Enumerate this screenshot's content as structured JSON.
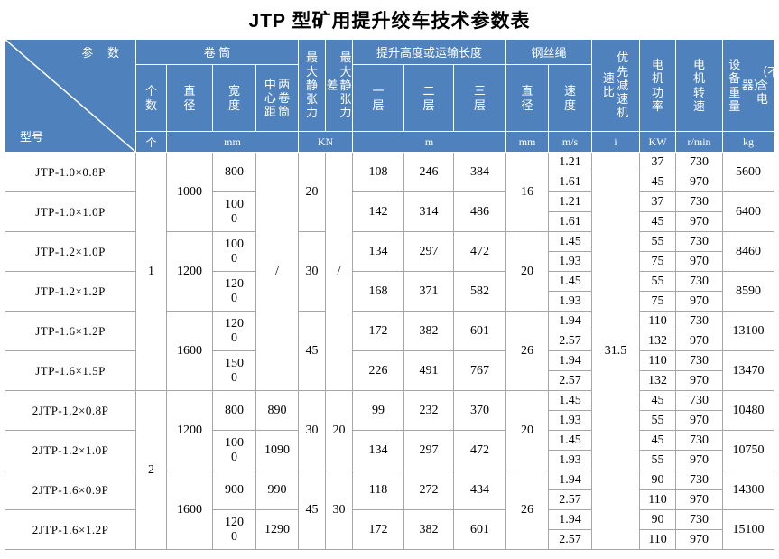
{
  "title": "JTP 型矿用提升绞车技术参数表",
  "colors": {
    "header_bg": "#4f81bd",
    "header_text": "#ffffff",
    "body_border": "#a6a6a6"
  },
  "header": {
    "corner": {
      "param": "参  数",
      "model": "型号"
    },
    "groups": {
      "drum": "卷 筒",
      "lift_height": "提升高度或运输长度",
      "wire_rope": "钢丝绳"
    },
    "labels": {
      "drum_count": "个数",
      "drum_diameter": "直径",
      "drum_width": "宽度",
      "center_distance_cols": [
        "中心距",
        "两卷筒"
      ],
      "max_static_tension": "最大静张力",
      "tension_diff_cols": [
        "差",
        "最大静张力"
      ],
      "layer1": "一层",
      "layer2": "二层",
      "layer3": "三层",
      "rope_diameter": "直径",
      "rope_speed": "速度",
      "reducer_ratio_cols": [
        "速比",
        "优先减速机"
      ],
      "motor_power": "电机功率",
      "motor_speed": "电机转速",
      "weight_cols": [
        "设备重量",
        "器）",
        "（不含电"
      ]
    },
    "units": {
      "count": "个",
      "drum_mm": "mm",
      "kn": "KN",
      "m": "m",
      "rope_mm": "mm",
      "ms": "m/s",
      "i": "i",
      "kw": "KW",
      "rmin": "r/min",
      "kg": "kg"
    }
  },
  "body": {
    "models": [
      {
        "model": "JTP-1.0×0.8P",
        "width": "800",
        "layers": [
          "108",
          "246",
          "384"
        ],
        "speeds": [
          "1.21",
          "1.61"
        ],
        "powers": [
          "37",
          "45"
        ],
        "rpms": [
          "730",
          "970"
        ],
        "weight": "5600"
      },
      {
        "model": "JTP-1.0×1.0P",
        "width": "1000",
        "layers": [
          "142",
          "314",
          "486"
        ],
        "speeds": [
          "1.21",
          "1.61"
        ],
        "powers": [
          "37",
          "45"
        ],
        "rpms": [
          "730",
          "970"
        ],
        "weight": "6400"
      },
      {
        "model": "JTP-1.2×1.0P",
        "width": "1000",
        "layers": [
          "134",
          "297",
          "472"
        ],
        "speeds": [
          "1.45",
          "1.93"
        ],
        "powers": [
          "55",
          "75"
        ],
        "rpms": [
          "730",
          "970"
        ],
        "weight": "8460"
      },
      {
        "model": "JTP-1.2×1.2P",
        "width": "1200",
        "layers": [
          "168",
          "371",
          "582"
        ],
        "speeds": [
          "1.45",
          "1.93"
        ],
        "powers": [
          "55",
          "75"
        ],
        "rpms": [
          "730",
          "970"
        ],
        "weight": "8590"
      },
      {
        "model": "JTP-1.6×1.2P",
        "width": "1200",
        "layers": [
          "172",
          "382",
          "601"
        ],
        "speeds": [
          "1.94",
          "2.57"
        ],
        "powers": [
          "110",
          "132"
        ],
        "rpms": [
          "730",
          "970"
        ],
        "weight": "13100"
      },
      {
        "model": "JTP-1.6×1.5P",
        "width": "1500",
        "layers": [
          "226",
          "491",
          "767"
        ],
        "speeds": [
          "1.94",
          "2.57"
        ],
        "powers": [
          "110",
          "132"
        ],
        "rpms": [
          "730",
          "970"
        ],
        "weight": "13470"
      },
      {
        "model": "2JTP-1.2×0.8P",
        "width": "800",
        "layers": [
          "99",
          "232",
          "370"
        ],
        "speeds": [
          "1.45",
          "1.93"
        ],
        "powers": [
          "45",
          "55"
        ],
        "rpms": [
          "730",
          "970"
        ],
        "weight": "10480"
      },
      {
        "model": "2JTP-1.2×1.0P",
        "width": "1000",
        "layers": [
          "134",
          "297",
          "472"
        ],
        "speeds": [
          "1.45",
          "1.93"
        ],
        "powers": [
          "45",
          "55"
        ],
        "rpms": [
          "730",
          "970"
        ],
        "weight": "10750"
      },
      {
        "model": "2JTP-1.6×0.9P",
        "width": "900",
        "layers": [
          "118",
          "272",
          "434"
        ],
        "speeds": [
          "1.94",
          "2.57"
        ],
        "powers": [
          "90",
          "110"
        ],
        "rpms": [
          "730",
          "970"
        ],
        "weight": "14300"
      },
      {
        "model": "2JTP-1.6×1.2P",
        "width": "1200",
        "layers": [
          "172",
          "382",
          "601"
        ],
        "speeds": [
          "1.94",
          "2.57"
        ],
        "powers": [
          "90",
          "110"
        ],
        "rpms": [
          "730",
          "970"
        ],
        "weight": "15100"
      }
    ],
    "merged": {
      "count": [
        {
          "v": "1",
          "s": 0,
          "e": 6
        },
        {
          "v": "2",
          "s": 6,
          "e": 10
        }
      ],
      "diameter": [
        {
          "v": "1000",
          "s": 0,
          "e": 2
        },
        {
          "v": "1200",
          "s": 2,
          "e": 4
        },
        {
          "v": "1600",
          "s": 4,
          "e": 6
        },
        {
          "v": "1200",
          "s": 6,
          "e": 8
        },
        {
          "v": "1600",
          "s": 8,
          "e": 10
        }
      ],
      "center": [
        {
          "v": "/",
          "s": 0,
          "e": 6
        },
        {
          "v": "890",
          "s": 6,
          "e": 7
        },
        {
          "v": "1090",
          "s": 7,
          "e": 8
        },
        {
          "v": "990",
          "s": 8,
          "e": 9
        },
        {
          "v": "1290",
          "s": 9,
          "e": 10
        }
      ],
      "tension": [
        {
          "v": "20",
          "s": 0,
          "e": 2
        },
        {
          "v": "30",
          "s": 2,
          "e": 4
        },
        {
          "v": "45",
          "s": 4,
          "e": 6
        },
        {
          "v": "30",
          "s": 6,
          "e": 8
        },
        {
          "v": "45",
          "s": 8,
          "e": 10
        }
      ],
      "diff": [
        {
          "v": "/",
          "s": 0,
          "e": 6
        },
        {
          "v": "20",
          "s": 6,
          "e": 8
        },
        {
          "v": "30",
          "s": 8,
          "e": 10
        }
      ],
      "rope": [
        {
          "v": "16",
          "s": 0,
          "e": 2
        },
        {
          "v": "20",
          "s": 2,
          "e": 4
        },
        {
          "v": "26",
          "s": 4,
          "e": 6
        },
        {
          "v": "20",
          "s": 6,
          "e": 8
        },
        {
          "v": "26",
          "s": 8,
          "e": 10
        }
      ],
      "ratio": [
        {
          "v": "31.5",
          "s": 0,
          "e": 10
        }
      ]
    }
  }
}
